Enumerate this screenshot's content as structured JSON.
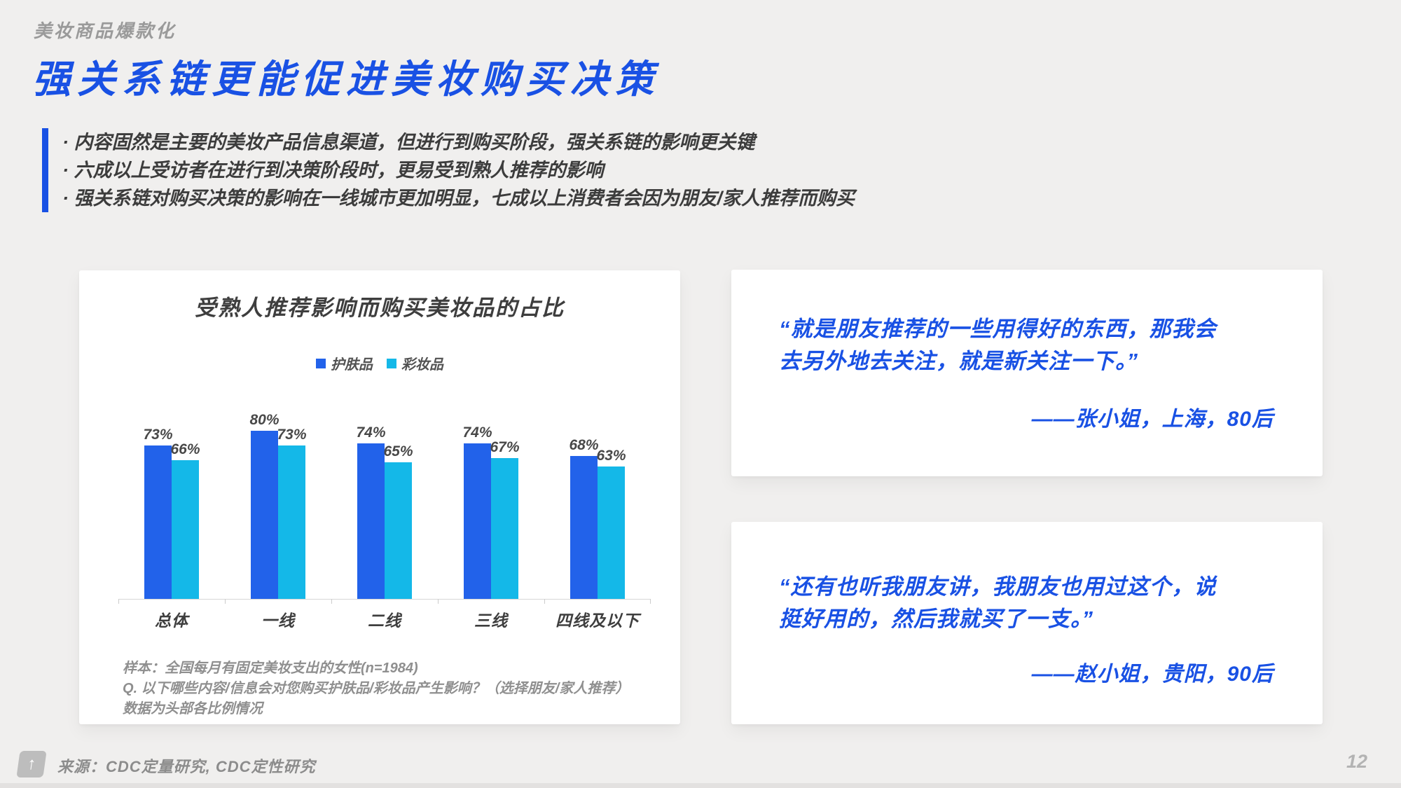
{
  "page": {
    "eyebrow": "美妆商品爆款化",
    "title": "强关系链更能促进美妆购买决策",
    "bullets": [
      "· 内容固然是主要的美妆产品信息渠道，但进行到购买阶段，强关系链的影响更关键",
      "· 六成以上受访者在进行到决策阶段时，更易受到熟人推荐的影响",
      "· 强关系链对购买决策的影响在一线城市更加明显，七成以上消费者会因为朋友/家人推荐而购买"
    ],
    "source": "来源：CDC定量研究, CDC定性研究",
    "page_number": "12"
  },
  "colors": {
    "accent_blue": "#1951e4",
    "bar_blue": "#2262ea",
    "bar_cyan": "#14b8e8",
    "slide_background": "#f0efee",
    "card_background": "#ffffff"
  },
  "chart_data": {
    "type": "bar",
    "title": "受熟人推荐影响而购买美妆品的占比",
    "categories": [
      "总体",
      "一线",
      "二线",
      "三线",
      "四线及以下"
    ],
    "series": [
      {
        "name": "护肤品",
        "color": "#2262ea",
        "values": [
          73,
          80,
          74,
          74,
          68
        ]
      },
      {
        "name": "彩妆品",
        "color": "#14b8e8",
        "values": [
          66,
          73,
          65,
          67,
          63
        ]
      }
    ],
    "value_suffix": "%",
    "ylim": [
      0,
      100
    ],
    "grid": false,
    "legend_position": "top-center",
    "footnotes": [
      "样本：全国每月有固定美妆支出的女性(n=1984)",
      "Q. 以下哪些内容/信息会对您购买护肤品/彩妆品产生影响？（选择朋友/家人推荐）",
      "数据为头部各比例情况"
    ]
  },
  "quotes": [
    {
      "text": "“就是朋友推荐的一些用得好的东西，那我会去另外地去关注，就是新关注一下。”",
      "attribution": "——张小姐，上海，80后"
    },
    {
      "text": "“还有也听我朋友讲，我朋友也用过这个，说挺好用的，然后我就买了一支。”",
      "attribution": "——赵小姐，贵阳，90后"
    }
  ]
}
